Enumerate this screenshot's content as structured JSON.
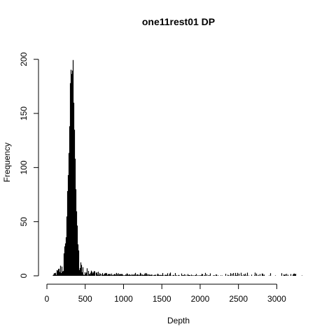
{
  "chart_data": {
    "type": "bar",
    "title": "one11rest01 DP",
    "xlabel": "Depth",
    "ylabel": "Frequency",
    "xlim": [
      0,
      3380
    ],
    "ylim": [
      0,
      205
    ],
    "x_ticks": [
      0,
      500,
      1000,
      1500,
      2000,
      2500,
      3000
    ],
    "y_ticks": [
      0,
      50,
      100,
      150,
      200
    ],
    "bin_width": 1,
    "series": [
      {
        "values_description_points": [
          [
            60,
            0
          ],
          [
            100,
            2
          ],
          [
            150,
            5
          ],
          [
            200,
            10
          ],
          [
            230,
            20
          ],
          [
            250,
            45
          ],
          [
            270,
            90
          ],
          [
            285,
            130
          ],
          [
            300,
            170
          ],
          [
            310,
            185
          ],
          [
            320,
            200
          ],
          [
            330,
            203
          ],
          [
            340,
            195
          ],
          [
            350,
            175
          ],
          [
            360,
            140
          ],
          [
            370,
            100
          ],
          [
            380,
            70
          ],
          [
            395,
            40
          ],
          [
            410,
            20
          ],
          [
            430,
            10
          ],
          [
            460,
            6
          ],
          [
            500,
            5
          ],
          [
            600,
            3
          ],
          [
            700,
            2
          ],
          [
            800,
            1.5
          ],
          [
            1000,
            1
          ],
          [
            1300,
            1
          ],
          [
            1600,
            0.5
          ],
          [
            2000,
            0.4
          ],
          [
            2500,
            0.3
          ],
          [
            3000,
            0.2
          ],
          [
            3330,
            0.1
          ]
        ]
      }
    ]
  }
}
